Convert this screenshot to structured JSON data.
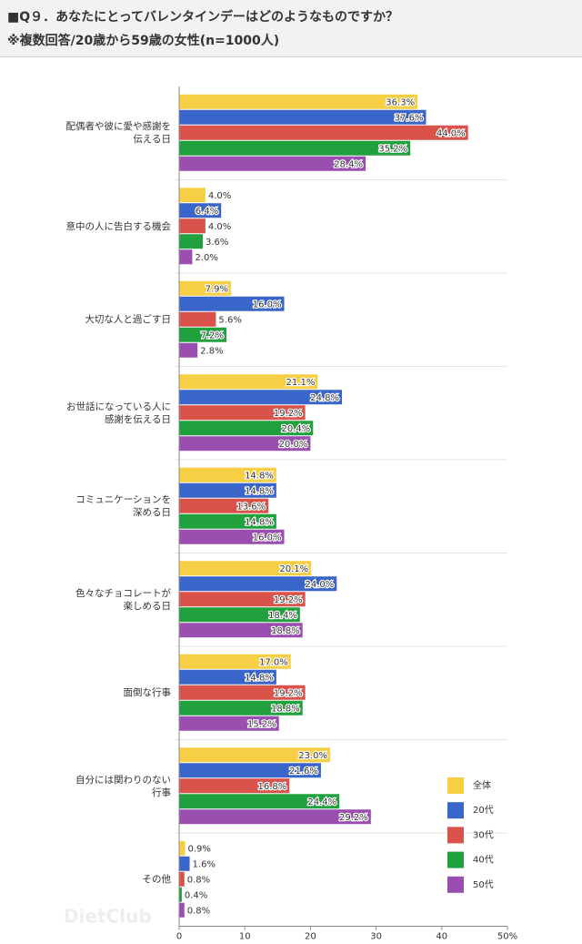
{
  "chart_data": {
    "type": "hbar",
    "title": "■Q９．あなたにとってバレンタインデーはどのようなものですか？",
    "subtitle": "※複数回答/20歳から59歳の女性(n=1000人)",
    "watermark": "DietClub",
    "categories": [
      "配偶者や彼に愛や感謝を\n伝える日",
      "意中の人に告白する機会",
      "大切な人と過ごす日",
      "お世話になっている人に\n感謝を伝える日",
      "コミュニケーションを\n深める日",
      "色々なチョコレートが\n楽しめる日",
      "面倒な行事",
      "自分には関わりのない\n行事",
      "その他"
    ],
    "series": [
      {
        "name": "全体",
        "color": "#f7cf45",
        "values": [
          36.3,
          4.0,
          7.9,
          21.1,
          14.8,
          20.1,
          17.0,
          23.0,
          0.9
        ],
        "value_labels": [
          "36.3%",
          "4.0%",
          "7.9%",
          "21.1%",
          "14.8%",
          "20.1%",
          "17.0%",
          "23.0%",
          "0.9%"
        ]
      },
      {
        "name": "20代",
        "color": "#3b66c9",
        "values": [
          37.6,
          6.4,
          16.0,
          24.8,
          14.8,
          24.0,
          14.8,
          21.6,
          1.6
        ],
        "value_labels": [
          "37.6%",
          "6.4%",
          "16.0%",
          "24.8%",
          "14.8%",
          "24.0%",
          "14.8%",
          "21.6%",
          "1.6%"
        ]
      },
      {
        "name": "30代",
        "color": "#d9534a",
        "values": [
          44.0,
          4.0,
          5.6,
          19.2,
          13.6,
          19.2,
          19.2,
          16.8,
          0.8
        ],
        "value_labels": [
          "44.0%",
          "4.0%",
          "5.6%",
          "19.2%",
          "13.6%",
          "19.2%",
          "19.2%",
          "16.8%",
          "0.8%"
        ]
      },
      {
        "name": "40代",
        "color": "#21a03e",
        "values": [
          35.2,
          3.6,
          7.2,
          20.4,
          14.8,
          18.4,
          18.8,
          24.4,
          0.4
        ],
        "value_labels": [
          "35.2%",
          "3.6%",
          "7.2%",
          "20.4%",
          "14.8%",
          "18.4%",
          "18.8%",
          "24.4%",
          "0.4%"
        ]
      },
      {
        "name": "50代",
        "color": "#9a4fb0",
        "values": [
          28.4,
          2.0,
          2.8,
          20.0,
          16.0,
          18.8,
          15.2,
          29.2,
          0.8
        ],
        "value_labels": [
          "28.4%",
          "2.0%",
          "2.8%",
          "20.0%",
          "16.0%",
          "18.8%",
          "15.2%",
          "29.2%",
          "0.8%"
        ]
      }
    ],
    "xlim": [
      0,
      50
    ],
    "xticks": [
      0,
      10,
      20,
      30,
      40,
      {
        "value": 50,
        "label": "50%"
      }
    ],
    "legend": "lower-right"
  }
}
